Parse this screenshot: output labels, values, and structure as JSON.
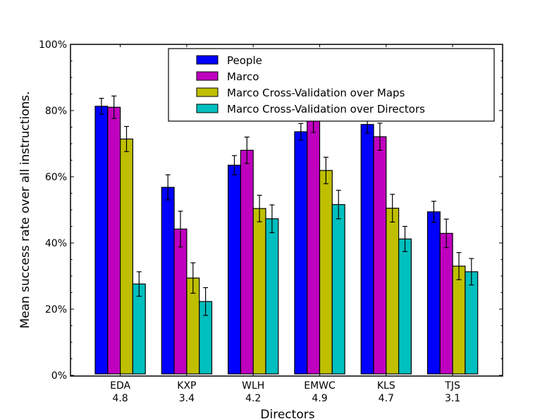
{
  "chart_data": {
    "type": "bar",
    "title": "",
    "xlabel": "Directors",
    "ylabel": "Mean success rate over all instructions.",
    "ylim": [
      0,
      100
    ],
    "yticks": [
      "0%",
      "20%",
      "40%",
      "60%",
      "80%",
      "100%"
    ],
    "categories": [
      {
        "name": "EDA",
        "score": "4.8"
      },
      {
        "name": "KXP",
        "score": "3.4"
      },
      {
        "name": "WLH",
        "score": "4.2"
      },
      {
        "name": "EMWC",
        "score": "4.9"
      },
      {
        "name": "KLS",
        "score": "4.7"
      },
      {
        "name": "TJS",
        "score": "3.1"
      }
    ],
    "legend_position": "top-right",
    "series": [
      {
        "name": "People",
        "color": "#0000ff",
        "values": [
          81.3,
          56.8,
          63.5,
          73.6,
          75.8,
          49.4
        ],
        "errors": [
          2.4,
          3.8,
          2.9,
          2.5,
          2.6,
          3.2
        ]
      },
      {
        "name": "Marco",
        "color": "#bf00bf",
        "values": [
          81.0,
          44.2,
          68.0,
          77.2,
          72.1,
          42.9
        ],
        "errors": [
          3.4,
          5.4,
          4.0,
          3.8,
          4.1,
          4.3
        ]
      },
      {
        "name": "Marco Cross-Validation over Maps",
        "color": "#bfbf00",
        "values": [
          71.4,
          29.4,
          50.4,
          61.9,
          50.5,
          33.0
        ],
        "errors": [
          3.8,
          4.6,
          4.0,
          4.0,
          4.2,
          4.1
        ]
      },
      {
        "name": "Marco Cross-Validation over Directors",
        "color": "#00bfbf",
        "values": [
          27.6,
          22.3,
          47.3,
          51.6,
          41.2,
          31.3
        ],
        "errors": [
          3.7,
          4.2,
          4.2,
          4.3,
          3.8,
          4.0
        ]
      }
    ]
  }
}
